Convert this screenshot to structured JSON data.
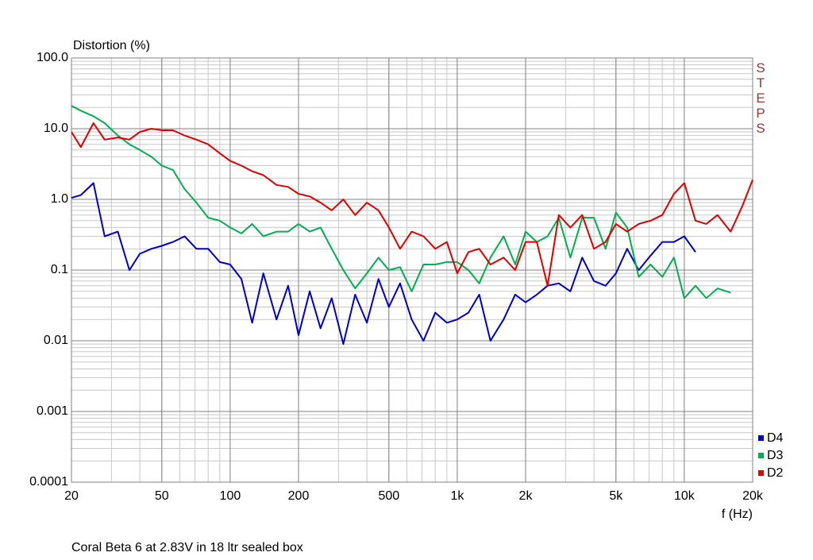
{
  "chart_data": {
    "type": "line",
    "y_label": "Distortion (%)",
    "x_label": "f (Hz)",
    "annotation": "STEPS",
    "caption": "Coral Beta 6 at 2.83V in 18 ltr sealed box",
    "xscale": "log",
    "yscale": "log",
    "grid": true,
    "minor_grid": true,
    "legend": "lower right",
    "xlim": [
      20,
      20000
    ],
    "ylim": [
      0.0001,
      100
    ],
    "xticks": [
      20,
      50,
      100,
      200,
      500,
      {
        "value": 1000,
        "label": "1k"
      },
      {
        "value": 2000,
        "label": "2k"
      },
      {
        "value": 5000,
        "label": "5k"
      },
      {
        "value": 10000,
        "label": "10k"
      },
      {
        "value": 20000,
        "label": "20k"
      }
    ],
    "yticks": [
      {
        "value": 100,
        "label": "100.0"
      },
      {
        "value": 10,
        "label": "10.0"
      },
      {
        "value": 1,
        "label": "1.0"
      },
      0.1,
      0.01,
      0.001,
      0.0001
    ],
    "x": [
      20,
      22,
      25,
      28,
      32,
      36,
      40,
      45,
      50,
      56,
      63,
      71,
      80,
      90,
      100,
      112,
      125,
      140,
      160,
      180,
      200,
      224,
      250,
      280,
      315,
      355,
      400,
      450,
      500,
      560,
      630,
      710,
      800,
      900,
      1000,
      1120,
      1250,
      1400,
      1600,
      1800,
      2000,
      2240,
      2500,
      2800,
      3150,
      3550,
      4000,
      4500,
      5000,
      5600,
      6300,
      7100,
      8000,
      9000,
      10000,
      11200,
      12500,
      14000,
      16000,
      18000,
      20000
    ],
    "series": [
      {
        "name": "D4",
        "color": "#0000c8",
        "values": [
          1.05,
          1.15,
          1.7,
          0.3,
          0.35,
          0.1,
          0.17,
          0.2,
          0.22,
          0.25,
          0.3,
          0.2,
          0.2,
          0.13,
          0.12,
          0.075,
          0.018,
          0.09,
          0.02,
          0.06,
          0.012,
          0.05,
          0.015,
          0.04,
          0.009,
          0.045,
          0.018,
          0.075,
          0.03,
          0.065,
          0.02,
          0.01,
          0.025,
          0.018,
          0.02,
          0.025,
          0.045,
          0.01,
          0.02,
          0.045,
          0.035,
          0.045,
          0.06,
          0.065,
          0.05,
          0.15,
          0.07,
          0.06,
          0.09,
          0.2,
          0.1,
          0.16,
          0.25,
          0.25,
          0.3,
          0.18,
          null,
          null,
          null,
          null,
          null
        ]
      },
      {
        "name": "D3",
        "color": "#00b050",
        "values": [
          21,
          18,
          15,
          12,
          8,
          6,
          5,
          4,
          3,
          2.6,
          1.4,
          0.9,
          0.55,
          0.5,
          0.4,
          0.33,
          0.45,
          0.3,
          0.35,
          0.35,
          0.45,
          0.35,
          0.4,
          0.2,
          0.1,
          0.055,
          0.09,
          0.15,
          0.1,
          0.11,
          0.05,
          0.12,
          0.12,
          0.13,
          0.13,
          0.1,
          0.065,
          0.15,
          0.3,
          0.12,
          0.35,
          0.25,
          0.3,
          0.55,
          0.15,
          0.55,
          0.55,
          0.2,
          0.65,
          0.4,
          0.08,
          0.12,
          0.08,
          0.15,
          0.04,
          0.06,
          0.04,
          0.055,
          0.048,
          null,
          null
        ]
      },
      {
        "name": "D2",
        "color": "#e00000",
        "values": [
          9,
          5.5,
          12,
          7,
          7.5,
          7,
          9,
          10,
          9.5,
          9.5,
          8,
          7,
          6,
          4.5,
          3.5,
          3,
          2.5,
          2.2,
          1.6,
          1.5,
          1.2,
          1.1,
          0.9,
          0.7,
          1.0,
          0.6,
          0.9,
          0.7,
          0.4,
          0.2,
          0.35,
          0.3,
          0.2,
          0.25,
          0.09,
          0.18,
          0.2,
          0.12,
          0.15,
          0.1,
          0.25,
          0.25,
          0.06,
          0.6,
          0.4,
          0.6,
          0.2,
          0.25,
          0.45,
          0.35,
          0.45,
          0.5,
          0.6,
          1.2,
          1.7,
          0.5,
          0.45,
          0.6,
          0.35,
          0.8,
          1.9
        ]
      }
    ]
  }
}
